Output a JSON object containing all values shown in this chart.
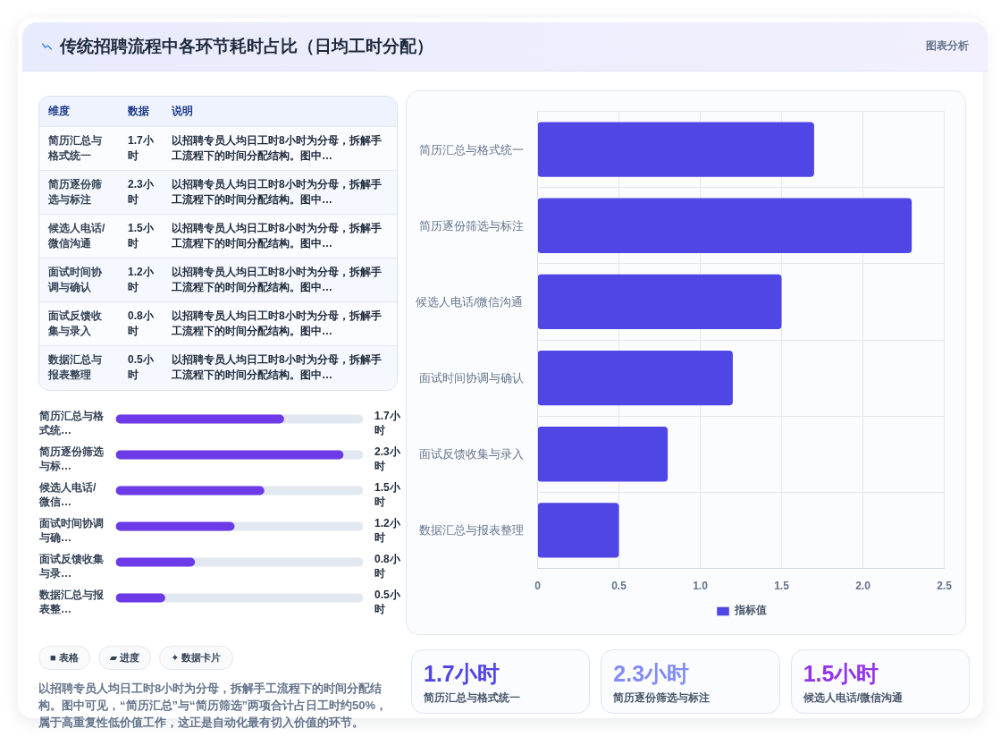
{
  "chart_data": [
    {
      "type": "other",
      "title": "传统招聘流程中各环节耗时占比（日均工时分配）",
      "subtitle": "图表分析"
    },
    {
      "type": "bar",
      "orientation": "horizontal",
      "categories": [
        "简历汇总与格式统一",
        "简历逐份筛选与标注",
        "候选人电话/微信沟通",
        "面试时间协调与确认",
        "面试反馈收集与录入",
        "数据汇总与报表整理"
      ],
      "series": [
        {
          "name": "指标值",
          "color": "#4f46e5",
          "values": [
            1.7,
            2.3,
            1.5,
            1.2,
            0.8,
            0.5
          ]
        }
      ],
      "xlim": [
        0,
        2.5
      ],
      "xticks": [
        0,
        0.5,
        {
          "value": 1,
          "label": "1.0"
        },
        1.5,
        {
          "value": 2,
          "label": "2.0"
        },
        2.5
      ],
      "grid": true,
      "legend": "bottom"
    },
    {
      "type": "other",
      "categories": [
        "简历汇总与格式统一",
        "简历逐份筛选与标注",
        "候选人电话/微信沟通",
        "面试时间协调与确认",
        "面试反馈收集与录入",
        "数据汇总与报表整理"
      ],
      "value_labels": [
        "1.7小时",
        "2.3小时",
        "1.5小时",
        "1.2小时",
        "0.8小时",
        "0.5小时"
      ],
      "annotations": [
        "维度",
        "数据",
        "说明",
        "以招聘专员人均日工时8小时为分母，拆解手工流程下的时间分配结构。图中…",
        "以招聘专员人均日工时8小时为分母，拆解手工流程下的时间分配结构。图中…",
        "以招聘专员人均日工时8小时为分母，拆解手工流程下的时间分配结构。图中…",
        "以招聘专员人均日工时8小时为分母，拆解手工流程下的时间分配结构。图中…",
        "以招聘专员人均日工时8小时为分母，拆解手工流程下的时间分配结构。图中…",
        "以招聘专员人均日工时8小时为分母，拆解手工流程下的时间分配结构。图中…"
      ]
    },
    {
      "type": "bar",
      "orientation": "horizontal",
      "categories": [
        "简历汇总与格式统…",
        "简历逐份筛选与标…",
        "候选人电话/微信…",
        "面试时间协调与确…",
        "面试反馈收集与录…",
        "数据汇总与报表整…"
      ],
      "values": [
        1.7,
        2.3,
        1.5,
        1.2,
        0.8,
        0.5
      ],
      "value_labels": [
        "1.7小时",
        "2.3小时",
        "1.5小时",
        "1.2小时",
        "0.8小时",
        "0.5小时"
      ],
      "color": "#6d3ae8",
      "xlim": [
        0,
        2.5
      ],
      "tick_labels": "y"
    },
    {
      "type": "other",
      "annotations": [
        "■ 表格",
        "▰ 进度",
        "✦ 数据卡片",
        "以招聘专员人均日工时8小时为分母，拆解手工流程下的时间分配结构。图中可见，“简历汇总”与“简历筛选”两项合计占日工时约50%，属于高重复性低价值工作，这正是自动化最有切入价值的环节。"
      ]
    },
    {
      "type": "other",
      "categories": [
        "简历汇总与格式统一",
        "简历逐份筛选与标注",
        "候选人电话/微信沟通"
      ],
      "value_labels": [
        "1.7小时",
        "2.3小时",
        "1.5小时"
      ]
    }
  ]
}
